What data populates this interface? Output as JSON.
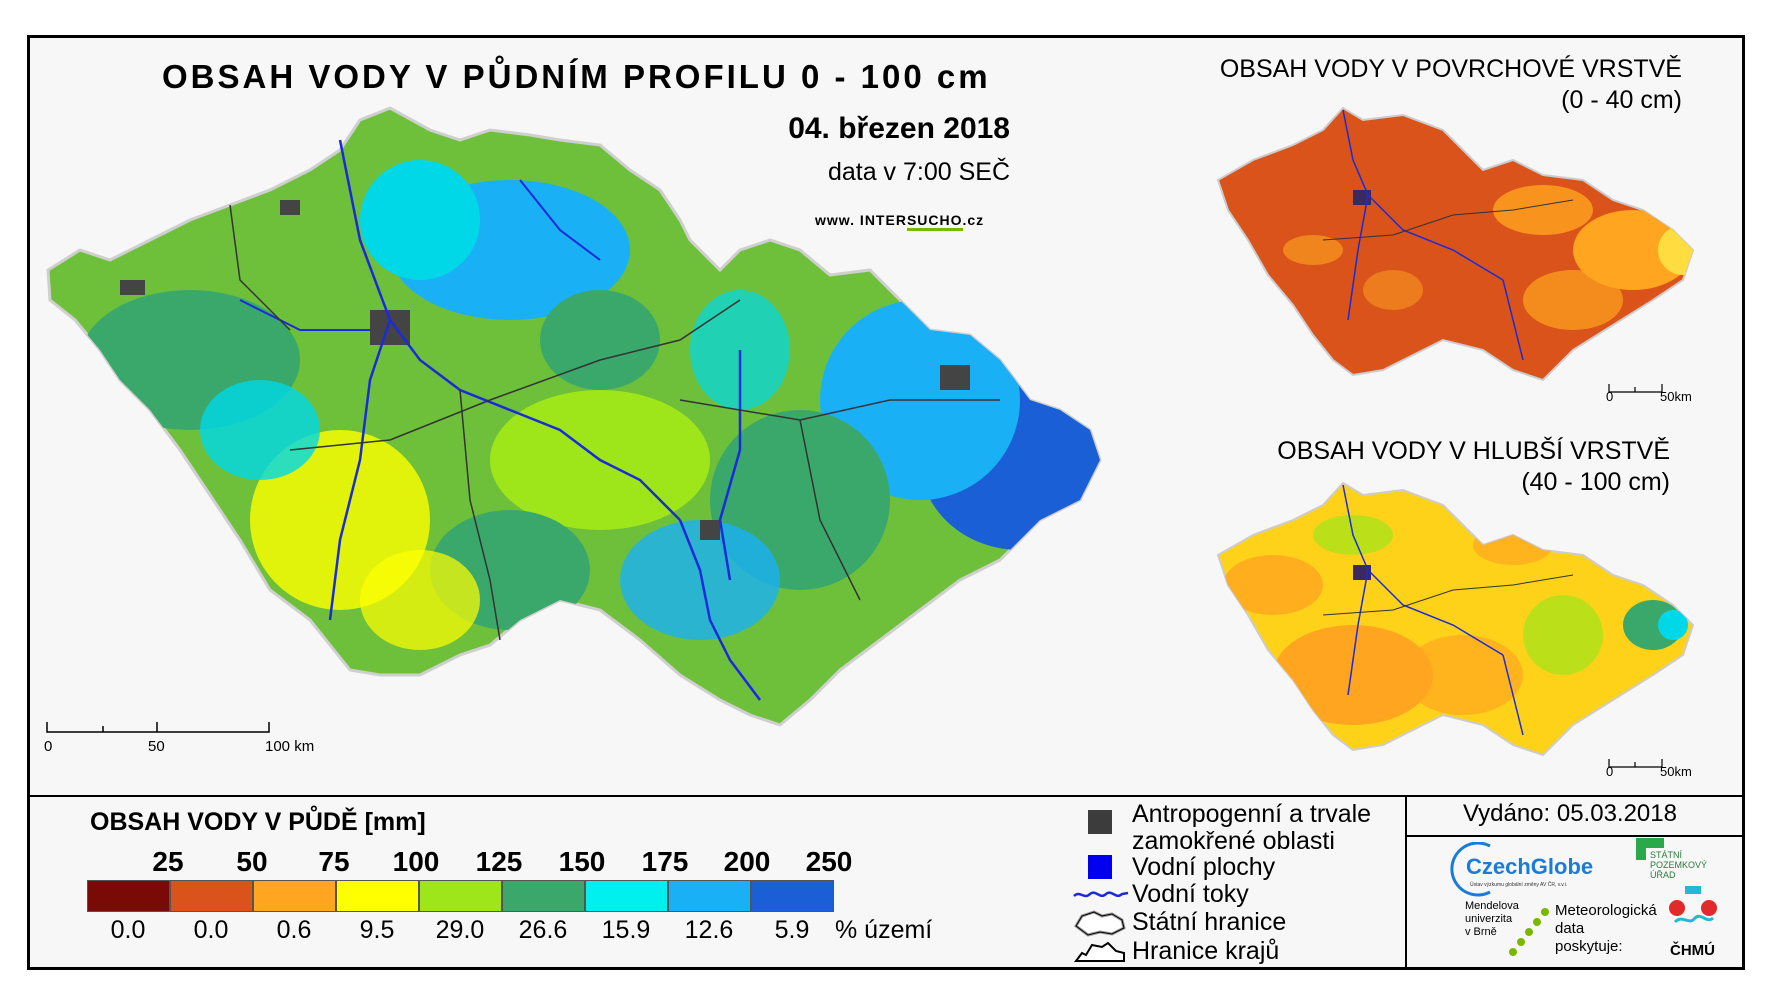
{
  "main_map": {
    "title": "OBSAH VODY V PŮDNÍM PROFILU 0 - 100 cm",
    "date": "04. březen 2018",
    "data_time": "data v 7:00 SEČ",
    "website_prefix": "www. INTER",
    "website_accent": "SUCHO",
    "website_suffix": ".cz",
    "scale_labels": [
      "0",
      "50",
      "100 km"
    ]
  },
  "surface_map": {
    "title_line1": "OBSAH VODY V POVRCHOVÉ VRSTVĚ",
    "title_line2": "(0 - 40 cm)",
    "scale_labels": [
      "0",
      "50km"
    ]
  },
  "deep_map": {
    "title_line1": "OBSAH VODY V HLUBŠÍ VRSTVĚ",
    "title_line2": "(40 - 100 cm)",
    "scale_labels": [
      "0",
      "50km"
    ]
  },
  "legend": {
    "title": "OBSAH VODY V PŮDĚ [mm]",
    "class_values": [
      "25",
      "50",
      "75",
      "100",
      "125",
      "150",
      "175",
      "200",
      "250"
    ],
    "percentages": [
      "0.0",
      "0.0",
      "0.6",
      "9.5",
      "29.0",
      "26.6",
      "15.9",
      "12.6",
      "5.9"
    ],
    "percent_label": "% území",
    "class_colors": [
      "#7a0a06",
      "#d9531a",
      "#ffa51f",
      "#ffff00",
      "#9ee61a",
      "#3aa86a",
      "#00f0f0",
      "#1ab0f5",
      "#1a5fd6"
    ]
  },
  "symbols": {
    "anthropogenic_line1": "Antropogenní a trvale",
    "anthropogenic_line2": "zamokřené oblasti",
    "water_bodies": "Vodní plochy",
    "watercourses": "Vodní toky",
    "state_border": "Státní hranice",
    "region_border": "Hranice krajů"
  },
  "issued": "Vydáno: 05.03.2018",
  "logos": {
    "czechglobe": "CzechGlobe",
    "czechglobe_sub": "Ústav výzkumu globální změny AV ČR, v.v.i.",
    "spu_line1": "STÁTNÍ",
    "spu_line2": "POZEMKOVÝ",
    "spu_line3": "ÚŘAD",
    "mendel_line1": "Mendelova",
    "mendel_line2": "univerzita",
    "mendel_line3": "v Brně",
    "meteo_line1": "Meteorologická",
    "meteo_line2": "data",
    "meteo_line3": "poskytuje:",
    "chmu": "ČHMÚ"
  }
}
